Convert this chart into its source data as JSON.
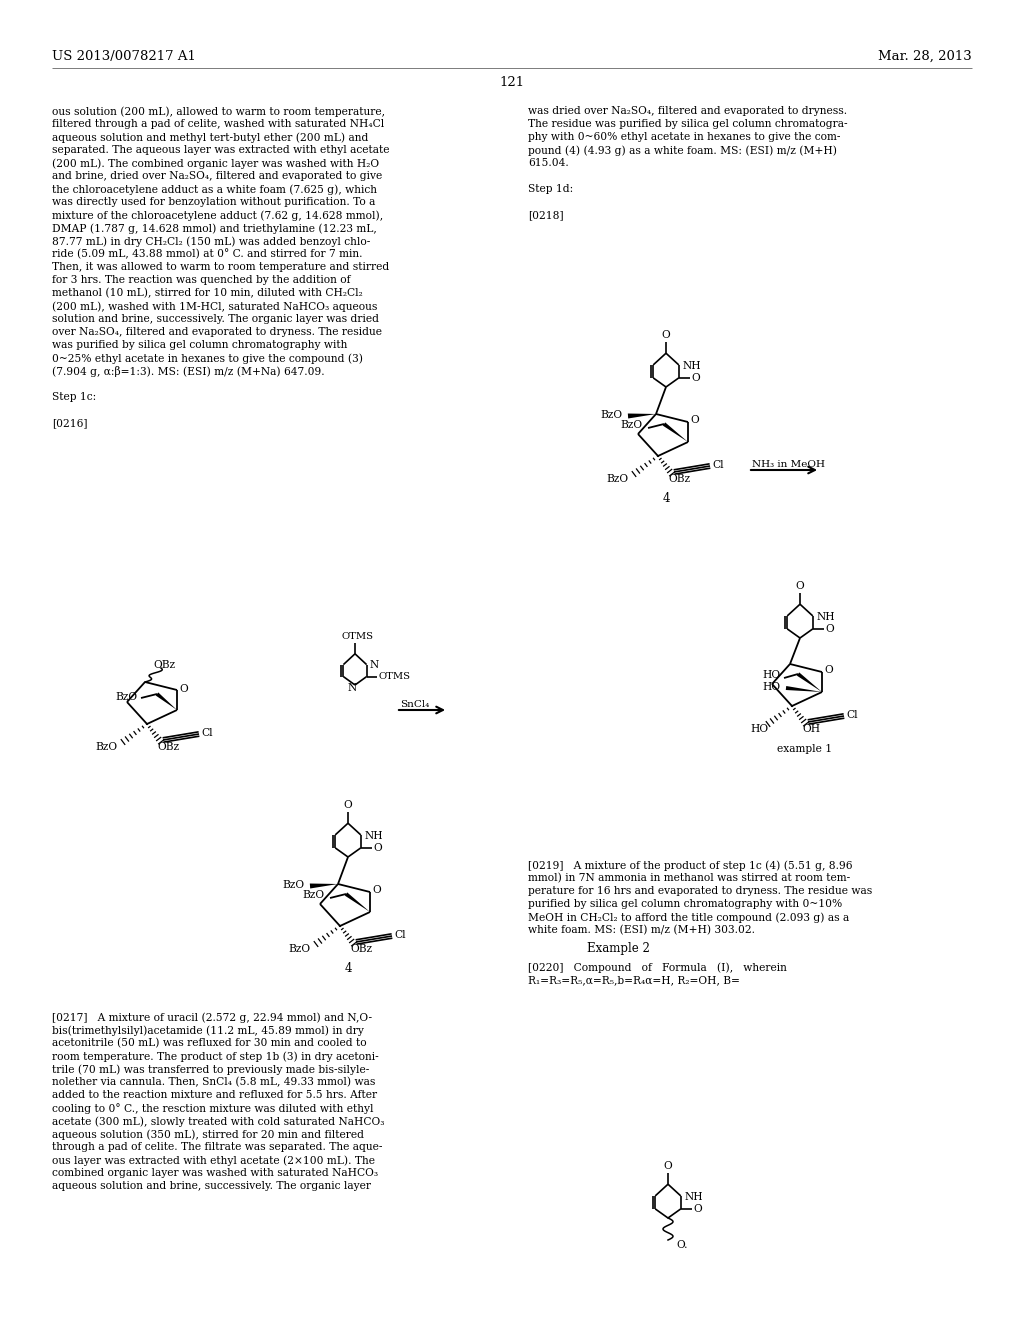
{
  "bg_color": "#ffffff",
  "header_left": "US 2013/0078217 A1",
  "header_right": "Mar. 28, 2013",
  "page_number": "121",
  "left_col_lines": [
    "ous solution (200 mL), allowed to warm to room temperature,",
    "filtered through a pad of celite, washed with saturated NH₄Cl",
    "aqueous solution and methyl tert-butyl ether (200 mL) and",
    "separated. The aqueous layer was extracted with ethyl acetate",
    "(200 mL). The combined organic layer was washed with H₂O",
    "and brine, dried over Na₂SO₄, filtered and evaporated to give",
    "the chloroacetylene adduct as a white foam (7.625 g), which",
    "was directly used for benzoylation without purification. To a",
    "mixture of the chloroacetylene adduct (7.62 g, 14.628 mmol),",
    "DMAP (1.787 g, 14.628 mmol) and triethylamine (12.23 mL,",
    "87.77 mL) in dry CH₂Cl₂ (150 mL) was added benzoyl chlo-",
    "ride (5.09 mL, 43.88 mmol) at 0° C. and stirred for 7 min.",
    "Then, it was allowed to warm to room temperature and stirred",
    "for 3 hrs. The reaction was quenched by the addition of",
    "methanol (10 mL), stirred for 10 min, diluted with CH₂Cl₂",
    "(200 mL), washed with 1M-HCl, saturated NaHCO₃ aqueous",
    "solution and brine, successively. The organic layer was dried",
    "over Na₂SO₄, filtered and evaporated to dryness. The residue",
    "was purified by silica gel column chromatography with",
    "0~25% ethyl acetate in hexanes to give the compound (3)",
    "(7.904 g, α:β=1:3). MS: (ESI) m/z (M+Na) 647.09.",
    "",
    "Step 1c:",
    "",
    "[0216]"
  ],
  "right_col_lines_top": [
    "was dried over Na₂SO₄, filtered and evaporated to dryness.",
    "The residue was purified by silica gel column chromatogra-",
    "phy with 0~60% ethyl acetate in hexanes to give the com-",
    "pound (4) (4.93 g) as a white foam. MS: (ESI) m/z (M+H)",
    "615.04.",
    "",
    "Step 1d:",
    "",
    "[0218]"
  ],
  "para_0217_lines": [
    "[0217]   A mixture of uracil (2.572 g, 22.94 mmol) and N,O-",
    "bis(trimethylsilyl)acetamide (11.2 mL, 45.89 mmol) in dry",
    "acetonitrile (50 mL) was refluxed for 30 min and cooled to",
    "room temperature. The product of step 1b (3) in dry acetoni-",
    "trile (70 mL) was transferred to previously made bis-silyle-",
    "nolether via cannula. Then, SnCl₄ (5.8 mL, 49.33 mmol) was",
    "added to the reaction mixture and refluxed for 5.5 hrs. After",
    "cooling to 0° C., the resction mixture was diluted with ethyl",
    "acetate (300 mL), slowly treated with cold saturated NaHCO₃",
    "aqueous solution (350 mL), stirred for 20 min and filtered",
    "through a pad of celite. The filtrate was separated. The aque-",
    "ous layer was extracted with ethyl acetate (2×100 mL). The",
    "combined organic layer was washed with saturated NaHCO₃",
    "aqueous solution and brine, successively. The organic layer"
  ],
  "para_0219_lines": [
    "[0219]   A mixture of the product of step 1c (4) (5.51 g, 8.96",
    "mmol) in 7N ammonia in methanol was stirred at room tem-",
    "perature for 16 hrs and evaporated to dryness. The residue was",
    "purified by silica gel column chromatography with 0~10%",
    "MeOH in CH₂Cl₂ to afford the title compound (2.093 g) as a",
    "white foam. MS: (ESI) m/z (M+H) 303.02."
  ],
  "para_0220_lines": [
    "[0220]   Compound   of   Formula   (I),   wherein",
    "R₁=R₃=R₅,α=R₅,b=R₄α=H, R₂=OH, B="
  ],
  "example2_label": "Example 2"
}
